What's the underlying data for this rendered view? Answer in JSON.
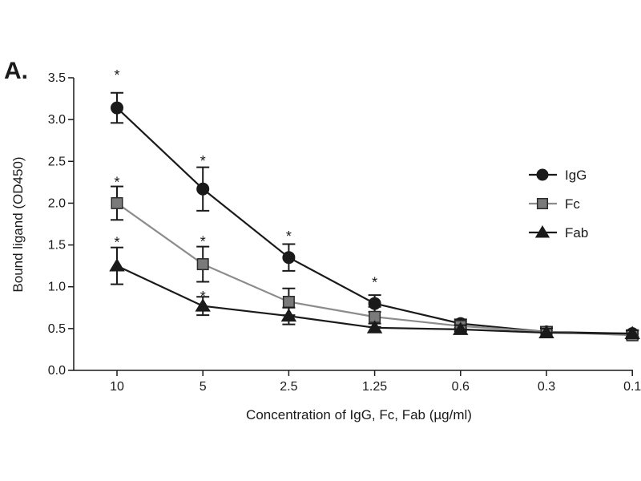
{
  "panel_label": "A.",
  "chart_data": {
    "type": "line",
    "title": "",
    "xlabel": "Concentration of IgG, Fc, Fab  (µg/ml)",
    "ylabel": "Bound ligand (OD450)",
    "categories": [
      "10",
      "5",
      "2.5",
      "1.25",
      "0.6",
      "0.3",
      "0.1"
    ],
    "ylim": [
      0,
      3.5
    ],
    "yticks": [
      "0.0",
      "0.5",
      "1.0",
      "1.5",
      "2.0",
      "2.5",
      "3.0",
      "3.5"
    ],
    "grid": false,
    "legend_position": "right",
    "series": [
      {
        "name": "IgG",
        "marker": "circle",
        "color": "#1a1a1a",
        "fill": "#1a1a1a",
        "values": [
          3.14,
          2.17,
          1.35,
          0.8,
          0.56,
          0.46,
          0.44
        ],
        "errors": [
          0.18,
          0.26,
          0.16,
          0.1,
          0.05,
          0.06,
          0.04
        ]
      },
      {
        "name": "Fc",
        "marker": "square",
        "color": "#8c8c8c",
        "fill": "#7a7a7a",
        "values": [
          2.0,
          1.27,
          0.82,
          0.64,
          0.53,
          0.46,
          0.42
        ],
        "errors": [
          0.2,
          0.21,
          0.16,
          0.12,
          0.06,
          0.06,
          0.05
        ]
      },
      {
        "name": "Fab",
        "marker": "triangle",
        "color": "#1a1a1a",
        "fill": "#1a1a1a",
        "values": [
          1.25,
          0.77,
          0.65,
          0.51,
          0.49,
          0.45,
          0.44
        ],
        "errors": [
          0.22,
          0.11,
          0.1,
          0.05,
          0.05,
          0.05,
          0.04
        ]
      }
    ],
    "annotations": [
      {
        "text": "*",
        "category": "10",
        "y": 3.55
      },
      {
        "text": "*",
        "category": "10",
        "y": 2.27
      },
      {
        "text": "*",
        "category": "10",
        "y": 1.55
      },
      {
        "text": "*",
        "category": "5",
        "y": 2.52
      },
      {
        "text": "*",
        "category": "5",
        "y": 1.56
      },
      {
        "text": "*",
        "category": "5",
        "y": 0.9
      },
      {
        "text": "*",
        "category": "2.5",
        "y": 1.62
      },
      {
        "text": "*",
        "category": "1.25",
        "y": 1.07
      }
    ]
  }
}
